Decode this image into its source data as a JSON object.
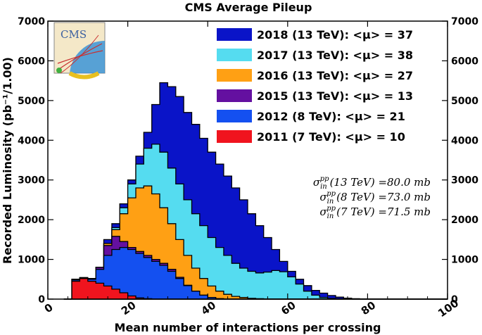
{
  "chart_data": {
    "type": "area",
    "title": "CMS Average Pileup",
    "xlabel": "Mean number of interactions per crossing",
    "ylabel": "Recorded Luminosity (pb⁻¹/1.00)",
    "xlim": [
      0,
      100
    ],
    "ylim": [
      0,
      7000
    ],
    "x_ticks": [
      "0",
      "20",
      "40",
      "60",
      "80",
      "100"
    ],
    "y_ticks": [
      "0",
      "1000",
      "2000",
      "3000",
      "4000",
      "5000",
      "6000",
      "7000"
    ],
    "y_ticks_right": [
      "0",
      "1000",
      "2000",
      "3000",
      "4000",
      "5000",
      "6000",
      "7000"
    ],
    "legend_position": "top-right",
    "annotations": [
      {
        "text": "σᵢₙᵖᵖ (13 TeV) = 80.0 mb",
        "prefix": "σ",
        "sub": "in",
        "sup": "pp",
        "suffix": "(13 TeV) =80.0 mb"
      },
      {
        "text": "σᵢₙᵖᵖ (8 TeV) = 73.0 mb",
        "prefix": "σ",
        "sub": "in",
        "sup": "pp",
        "suffix": "(8 TeV) =73.0 mb"
      },
      {
        "text": "σᵢₙᵖᵖ (7 TeV) = 71.5 mb",
        "prefix": "σ",
        "sub": "in",
        "sup": "pp",
        "suffix": "(7 TeV) =71.5 mb"
      }
    ],
    "logo": "CMS",
    "series": [
      {
        "name": "2018 (13 TeV)",
        "legend_label": "2018 (13 TeV): <μ> = 37",
        "color": "#0a14c8",
        "points": [
          [
            4,
            0
          ],
          [
            6,
            500
          ],
          [
            8,
            540
          ],
          [
            10,
            520
          ],
          [
            12,
            800
          ],
          [
            14,
            1500
          ],
          [
            16,
            1900
          ],
          [
            18,
            2400
          ],
          [
            20,
            3000
          ],
          [
            22,
            3600
          ],
          [
            24,
            4200
          ],
          [
            26,
            4900
          ],
          [
            28,
            5450
          ],
          [
            30,
            5350
          ],
          [
            32,
            5100
          ],
          [
            34,
            4700
          ],
          [
            36,
            4400
          ],
          [
            38,
            4050
          ],
          [
            40,
            3700
          ],
          [
            42,
            3400
          ],
          [
            44,
            3100
          ],
          [
            46,
            2800
          ],
          [
            48,
            2500
          ],
          [
            50,
            2150
          ],
          [
            52,
            1850
          ],
          [
            54,
            1550
          ],
          [
            56,
            1250
          ],
          [
            58,
            950
          ],
          [
            60,
            700
          ],
          [
            62,
            500
          ],
          [
            64,
            340
          ],
          [
            66,
            220
          ],
          [
            68,
            150
          ],
          [
            70,
            90
          ],
          [
            72,
            50
          ],
          [
            74,
            25
          ],
          [
            76,
            10
          ],
          [
            78,
            5
          ],
          [
            80,
            0
          ],
          [
            100,
            0
          ]
        ]
      },
      {
        "name": "2017 (13 TeV)",
        "legend_label": "2017 (13 TeV): <μ> = 38",
        "color": "#55dcf0",
        "points": [
          [
            4,
            0
          ],
          [
            6,
            500
          ],
          [
            8,
            540
          ],
          [
            10,
            520
          ],
          [
            12,
            800
          ],
          [
            14,
            1400
          ],
          [
            16,
            1800
          ],
          [
            18,
            2300
          ],
          [
            20,
            2900
          ],
          [
            22,
            3400
          ],
          [
            24,
            3800
          ],
          [
            26,
            3900
          ],
          [
            28,
            3700
          ],
          [
            30,
            3300
          ],
          [
            32,
            2900
          ],
          [
            34,
            2500
          ],
          [
            36,
            2150
          ],
          [
            38,
            1850
          ],
          [
            40,
            1550
          ],
          [
            42,
            1300
          ],
          [
            44,
            1100
          ],
          [
            46,
            900
          ],
          [
            48,
            780
          ],
          [
            50,
            700
          ],
          [
            52,
            660
          ],
          [
            54,
            680
          ],
          [
            56,
            720
          ],
          [
            58,
            690
          ],
          [
            60,
            560
          ],
          [
            62,
            380
          ],
          [
            64,
            200
          ],
          [
            66,
            100
          ],
          [
            68,
            40
          ],
          [
            70,
            15
          ],
          [
            72,
            5
          ],
          [
            74,
            0
          ],
          [
            100,
            0
          ]
        ]
      },
      {
        "name": "2016 (13 TeV)",
        "legend_label": "2016 (13 TeV): <μ> = 27",
        "color": "#ffa014",
        "points": [
          [
            4,
            0
          ],
          [
            6,
            500
          ],
          [
            8,
            540
          ],
          [
            10,
            520
          ],
          [
            12,
            800
          ],
          [
            14,
            1400
          ],
          [
            16,
            1750
          ],
          [
            18,
            2150
          ],
          [
            20,
            2550
          ],
          [
            22,
            2800
          ],
          [
            24,
            2850
          ],
          [
            26,
            2650
          ],
          [
            28,
            2300
          ],
          [
            30,
            1900
          ],
          [
            32,
            1500
          ],
          [
            34,
            1100
          ],
          [
            36,
            780
          ],
          [
            38,
            520
          ],
          [
            40,
            330
          ],
          [
            42,
            200
          ],
          [
            44,
            120
          ],
          [
            46,
            70
          ],
          [
            48,
            40
          ],
          [
            50,
            20
          ],
          [
            52,
            10
          ],
          [
            54,
            0
          ],
          [
            100,
            0
          ]
        ]
      },
      {
        "name": "2015 (13 TeV)",
        "legend_label": "2015 (13 TeV): <μ> = 13",
        "color": "#6410a0",
        "points": [
          [
            4,
            0
          ],
          [
            6,
            500
          ],
          [
            8,
            540
          ],
          [
            10,
            520
          ],
          [
            12,
            800
          ],
          [
            14,
            1350
          ],
          [
            16,
            1580
          ],
          [
            18,
            1450
          ],
          [
            20,
            1300
          ],
          [
            22,
            1200
          ],
          [
            24,
            1100
          ],
          [
            26,
            1000
          ],
          [
            28,
            900
          ],
          [
            30,
            750
          ],
          [
            32,
            550
          ],
          [
            34,
            350
          ],
          [
            36,
            200
          ],
          [
            38,
            100
          ],
          [
            40,
            40
          ],
          [
            42,
            10
          ],
          [
            44,
            0
          ],
          [
            100,
            0
          ]
        ]
      },
      {
        "name": "2012 (8 TeV)",
        "legend_label": "2012 (8 TeV):    <μ> = 21",
        "color": "#1450f0",
        "points": [
          [
            4,
            0
          ],
          [
            6,
            480
          ],
          [
            8,
            520
          ],
          [
            10,
            500
          ],
          [
            12,
            750
          ],
          [
            14,
            1100
          ],
          [
            16,
            1250
          ],
          [
            18,
            1300
          ],
          [
            20,
            1250
          ],
          [
            22,
            1150
          ],
          [
            24,
            1050
          ],
          [
            26,
            950
          ],
          [
            28,
            850
          ],
          [
            30,
            700
          ],
          [
            32,
            520
          ],
          [
            34,
            340
          ],
          [
            36,
            200
          ],
          [
            38,
            100
          ],
          [
            40,
            40
          ],
          [
            42,
            10
          ],
          [
            44,
            0
          ],
          [
            100,
            0
          ]
        ]
      },
      {
        "name": "2011 (7 TeV)",
        "legend_label": "2011 (7 TeV):    <μ> = 10",
        "color": "#f0141e",
        "points": [
          [
            4,
            0
          ],
          [
            6,
            450
          ],
          [
            8,
            520
          ],
          [
            10,
            450
          ],
          [
            12,
            400
          ],
          [
            14,
            330
          ],
          [
            16,
            250
          ],
          [
            18,
            160
          ],
          [
            20,
            80
          ],
          [
            22,
            30
          ],
          [
            24,
            10
          ],
          [
            26,
            0
          ],
          [
            100,
            0
          ]
        ]
      }
    ]
  }
}
